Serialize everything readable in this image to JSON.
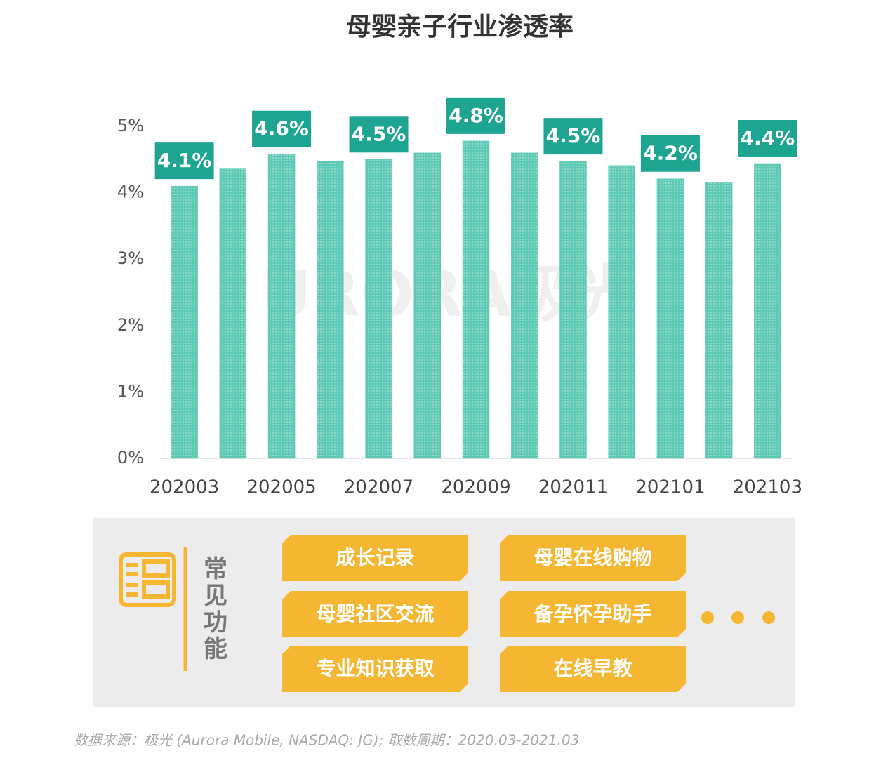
{
  "chart_data": {
    "type": "bar",
    "title": "母婴亲子行业渗透率",
    "categories": [
      "202003",
      null,
      "202005",
      null,
      "202007",
      null,
      "202009",
      null,
      "202011",
      null,
      "202101",
      null,
      "202103"
    ],
    "values": [
      4.1,
      4.36,
      4.58,
      4.48,
      4.5,
      4.6,
      4.78,
      4.6,
      4.47,
      4.41,
      4.21,
      4.15,
      4.44
    ],
    "value_labels": [
      "4.1%",
      null,
      "4.6%",
      null,
      "4.5%",
      null,
      "4.8%",
      null,
      "4.5%",
      null,
      "4.2%",
      null,
      "4.4%"
    ],
    "color": "#5ec9b5",
    "label_color": "#1ea591",
    "ylim": [
      0,
      5
    ],
    "yticks": [
      {
        "value": 0,
        "label": "0%"
      },
      {
        "value": 1,
        "label": "1%"
      },
      {
        "value": 2,
        "label": "2%"
      },
      {
        "value": 3,
        "label": "3%"
      },
      {
        "value": 4,
        "label": "4%"
      },
      {
        "value": 5,
        "label": "5%"
      }
    ],
    "grid": false,
    "watermark": "URORA极光"
  },
  "features": {
    "title": "常见功能",
    "items": [
      "成长记录",
      "母婴在线购物",
      "母婴社区交流",
      "备孕怀孕助手",
      "专业知识获取",
      "在线早教"
    ]
  },
  "source": "数据来源：极光 (Aurora Mobile, NASDAQ: JG); 取数周期：2020.03-2021.03"
}
